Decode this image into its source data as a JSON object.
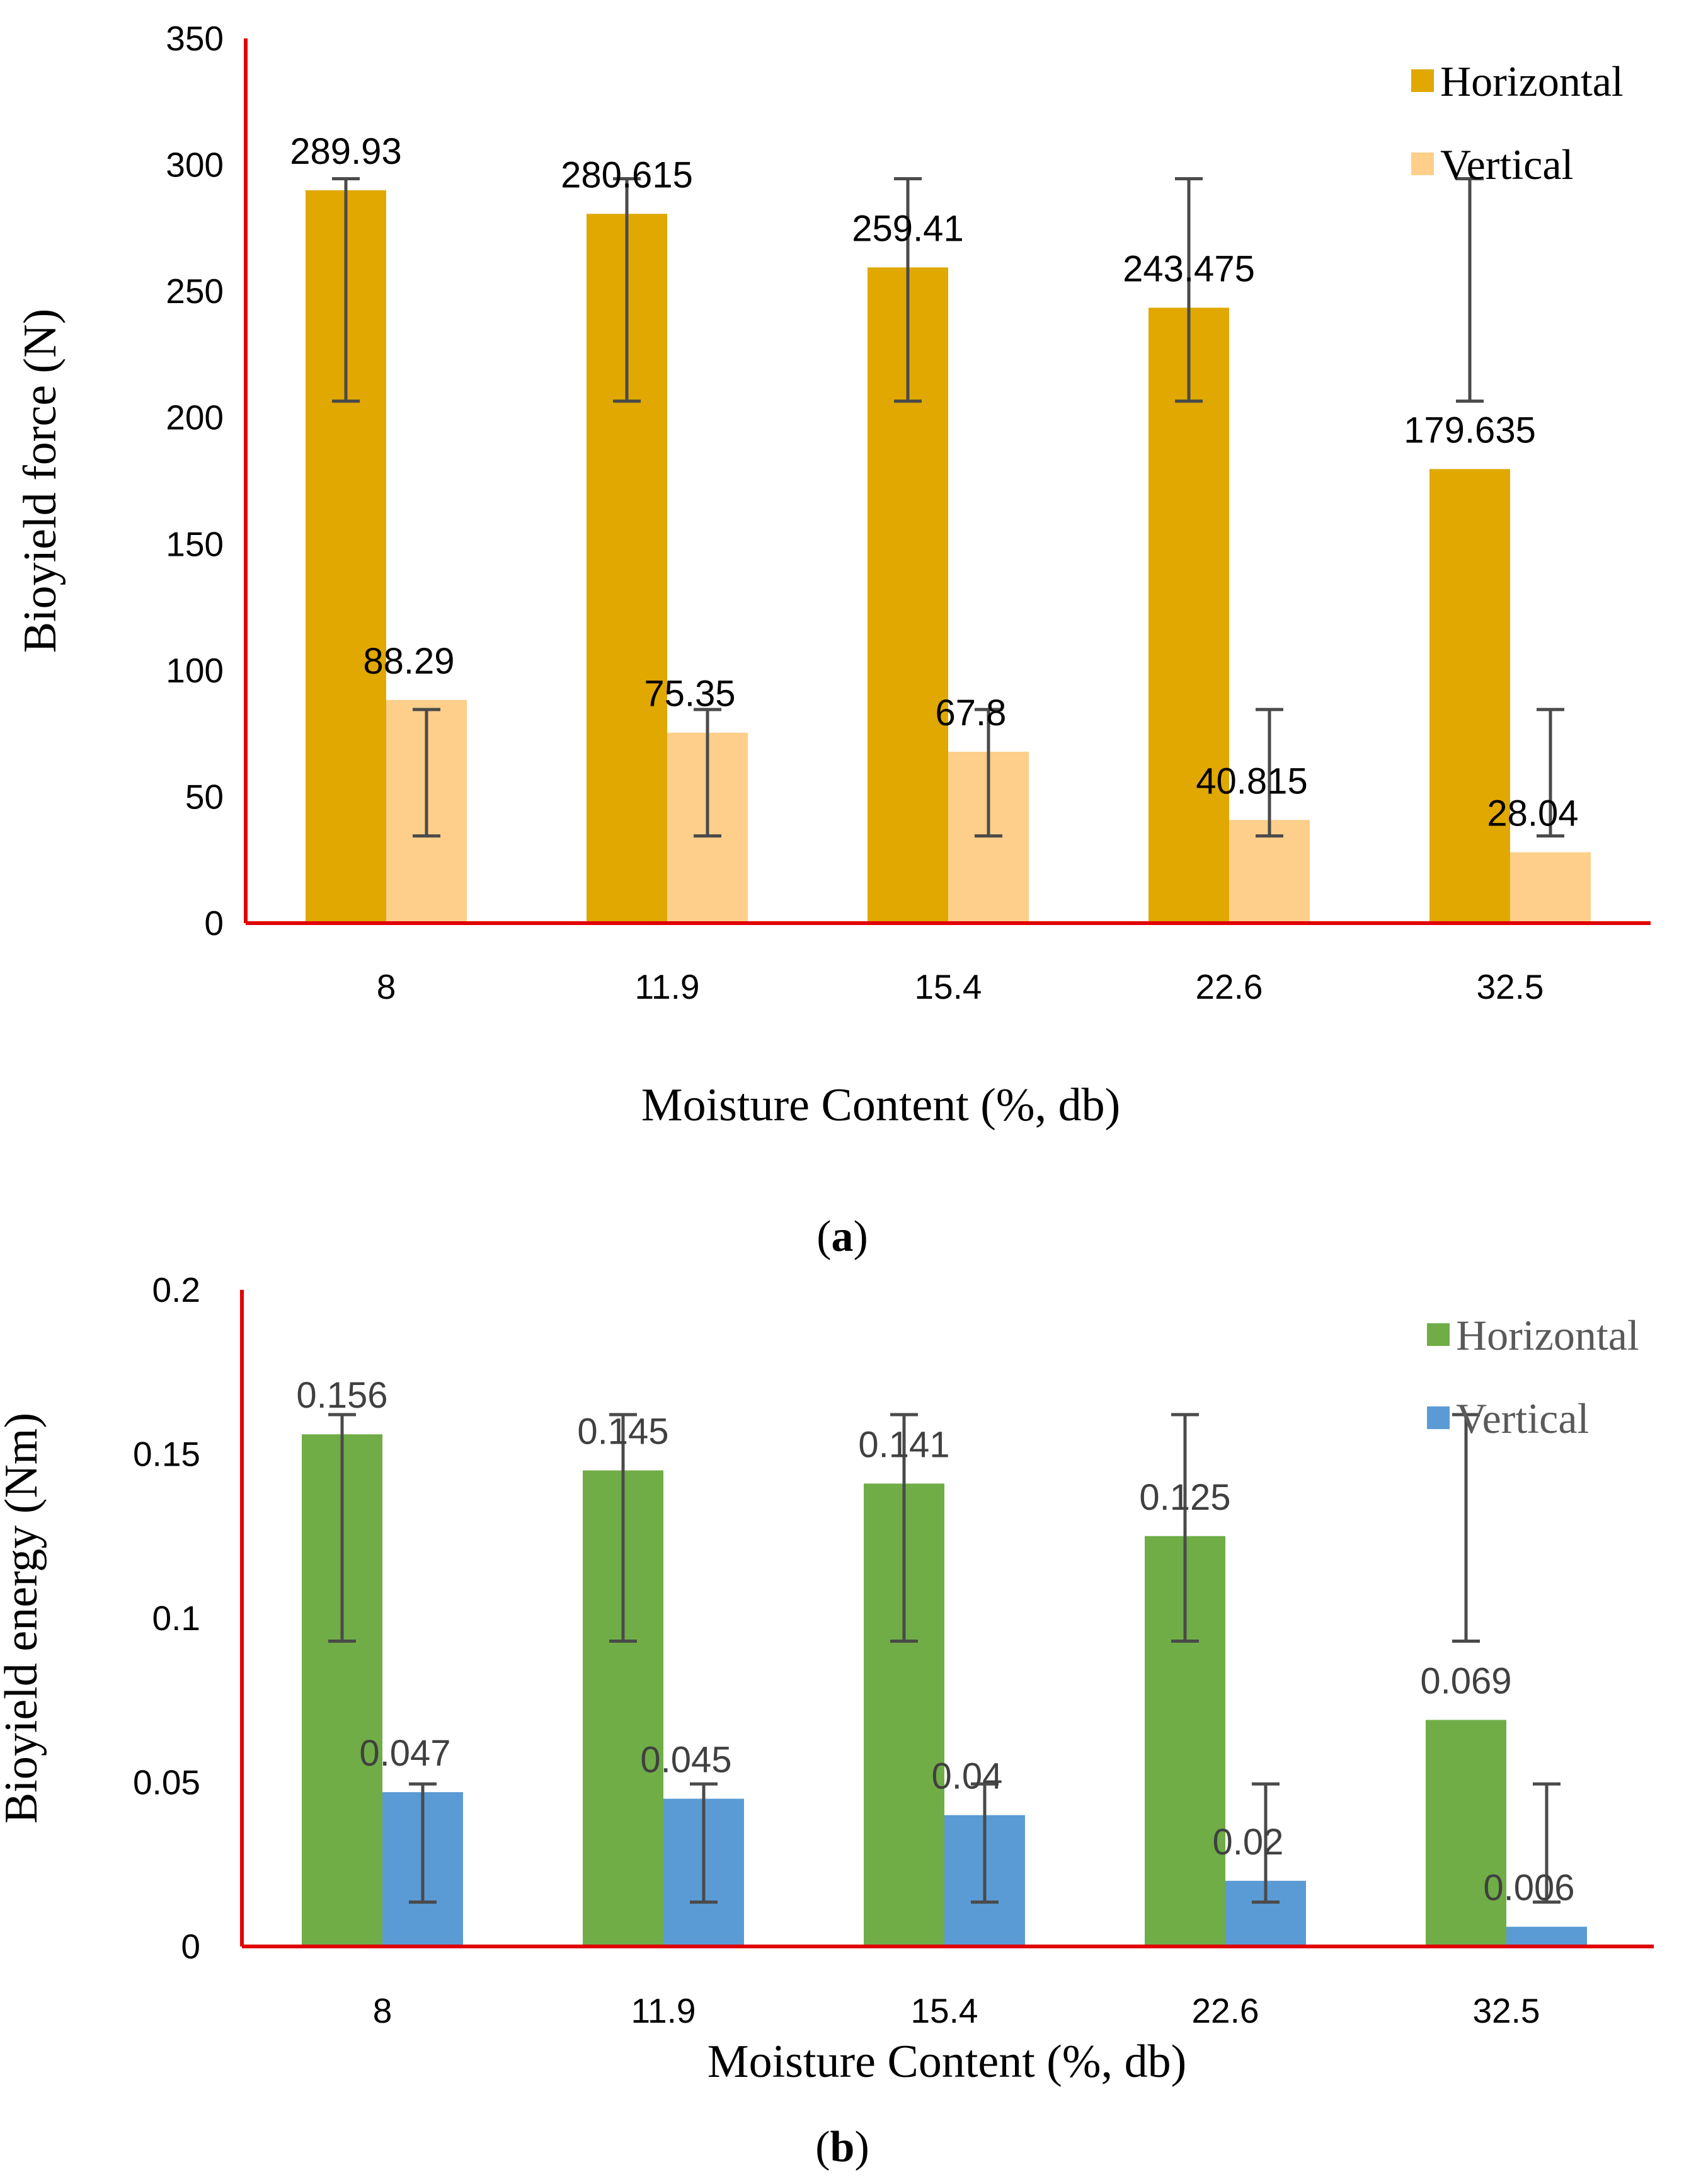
{
  "chart_data": [
    {
      "type": "bar",
      "categories": [
        "8",
        "11.9",
        "15.4",
        "22.6",
        "32.5"
      ],
      "series": [
        {
          "name": "Horizontal",
          "values": [
            289.93,
            280.615,
            259.41,
            243.475,
            179.635
          ],
          "labels": [
            "289.93",
            "280.615",
            "259.41",
            "243.475",
            "179.635"
          ],
          "color": "#E0A800",
          "error_low": [
            206.5,
            206.5,
            206.5,
            206.5,
            206.5
          ],
          "error_high": [
            294.5,
            294.5,
            294.5,
            294.5,
            294.5
          ]
        },
        {
          "name": "Vertical",
          "values": [
            88.29,
            75.35,
            67.8,
            40.815,
            28.04
          ],
          "labels": [
            "88.29",
            "75.35",
            "67.8",
            "40.815",
            "28.04"
          ],
          "color": "#FDCF8A",
          "error_low": [
            34.5,
            34.5,
            34.5,
            34.5,
            34.5
          ],
          "error_high": [
            84.5,
            84.5,
            84.5,
            84.5,
            84.5
          ]
        }
      ],
      "ylabel": "Bioyield force (N)",
      "xlabel": "Moisture Content (%, db)",
      "ylim": [
        0,
        350
      ],
      "yticks": [
        "0",
        "50",
        "100",
        "150",
        "200",
        "250",
        "300",
        "350"
      ],
      "axis_color": "#E00000",
      "grid": false,
      "legend": "top-right",
      "panel_label": "a"
    },
    {
      "type": "bar",
      "categories": [
        "8",
        "11.9",
        "15.4",
        "22.6",
        "32.5"
      ],
      "series": [
        {
          "name": "Horizontal",
          "values": [
            0.156,
            0.145,
            0.141,
            0.125,
            0.069
          ],
          "labels": [
            "0.156",
            "0.145",
            "0.141",
            "0.125",
            "0.069"
          ],
          "color": "#70AD47",
          "error_low": [
            0.093,
            0.093,
            0.093,
            0.093,
            0.093
          ],
          "error_high": [
            0.162,
            0.162,
            0.162,
            0.162,
            0.162
          ]
        },
        {
          "name": "Vertical",
          "values": [
            0.047,
            0.045,
            0.04,
            0.02,
            0.006
          ],
          "labels": [
            "0.047",
            "0.045",
            "0.04",
            "0.02",
            "0.006"
          ],
          "color": "#5B9BD5",
          "error_low": [
            0.0135,
            0.0135,
            0.0135,
            0.0135,
            0.0135
          ],
          "error_high": [
            0.0495,
            0.0495,
            0.0495,
            0.0495,
            0.0495
          ]
        }
      ],
      "ylabel": "Bioyield energy (Nm)",
      "xlabel": "Moisture Content (%, db)",
      "ylim": [
        0,
        0.2
      ],
      "yticks": [
        "0",
        "0.05",
        "0.1",
        "0.15",
        "0.2"
      ],
      "axis_color": "#E00000",
      "grid": false,
      "legend": "top-right",
      "panel_label": "b"
    }
  ]
}
